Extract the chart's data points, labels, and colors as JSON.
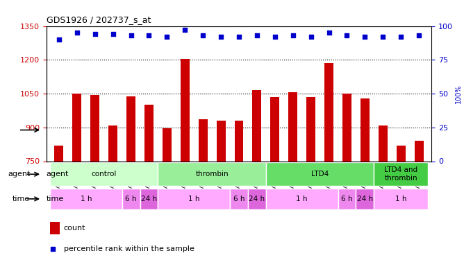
{
  "title": "GDS1926 / 202737_s_at",
  "samples": [
    "GSM27929",
    "GSM82525",
    "GSM82530",
    "GSM82534",
    "GSM82538",
    "GSM82540",
    "GSM82527",
    "GSM82528",
    "GSM82532",
    "GSM82536",
    "GSM95411",
    "GSM95410",
    "GSM27930",
    "GSM82526",
    "GSM82531",
    "GSM82535",
    "GSM82539",
    "GSM82541",
    "GSM82529",
    "GSM82533",
    "GSM82537"
  ],
  "bar_values": [
    820,
    1050,
    1045,
    910,
    1038,
    1000,
    895,
    1205,
    935,
    930,
    930,
    1065,
    1035,
    1055,
    1035,
    1185,
    1050,
    1030,
    910,
    820,
    840
  ],
  "percentile_values": [
    90,
    95,
    94,
    94,
    93,
    93,
    92,
    97,
    93,
    92,
    92,
    93,
    92,
    93,
    92,
    95,
    93,
    92,
    92,
    92,
    93
  ],
  "bar_color": "#cc0000",
  "percentile_color": "#0000cc",
  "ylim_left": [
    750,
    1350
  ],
  "ylim_right": [
    0,
    100
  ],
  "yticks_left": [
    750,
    900,
    1050,
    1200,
    1350
  ],
  "yticks_right": [
    0,
    25,
    50,
    75,
    100
  ],
  "agent_groups": [
    {
      "label": "control",
      "start": 0,
      "end": 6,
      "color": "#ccffcc"
    },
    {
      "label": "thrombin",
      "start": 6,
      "end": 12,
      "color": "#99ee99"
    },
    {
      "label": "LTD4",
      "start": 12,
      "end": 18,
      "color": "#66dd66"
    },
    {
      "label": "LTD4 and\nthrombin",
      "start": 18,
      "end": 21,
      "color": "#44cc44"
    }
  ],
  "time_groups": [
    {
      "label": "1 h",
      "start": 0,
      "end": 4,
      "color": "#ffaaff"
    },
    {
      "label": "6 h",
      "start": 4,
      "end": 5,
      "color": "#ee88ee"
    },
    {
      "label": "24 h",
      "start": 5,
      "end": 6,
      "color": "#dd66dd"
    },
    {
      "label": "1 h",
      "start": 6,
      "end": 10,
      "color": "#ffaaff"
    },
    {
      "label": "6 h",
      "start": 10,
      "end": 11,
      "color": "#ee88ee"
    },
    {
      "label": "24 h",
      "start": 11,
      "end": 12,
      "color": "#dd66dd"
    },
    {
      "label": "1 h",
      "start": 12,
      "end": 16,
      "color": "#ffaaff"
    },
    {
      "label": "6 h",
      "start": 16,
      "end": 17,
      "color": "#ee88ee"
    },
    {
      "label": "24 h",
      "start": 17,
      "end": 18,
      "color": "#dd66dd"
    },
    {
      "label": "1 h",
      "start": 18,
      "end": 21,
      "color": "#ffaaff"
    }
  ],
  "background_color": "#ffffff",
  "grid_color": "#000000",
  "tick_label_color_left": "#cc0000",
  "tick_label_color_right": "#0000cc"
}
